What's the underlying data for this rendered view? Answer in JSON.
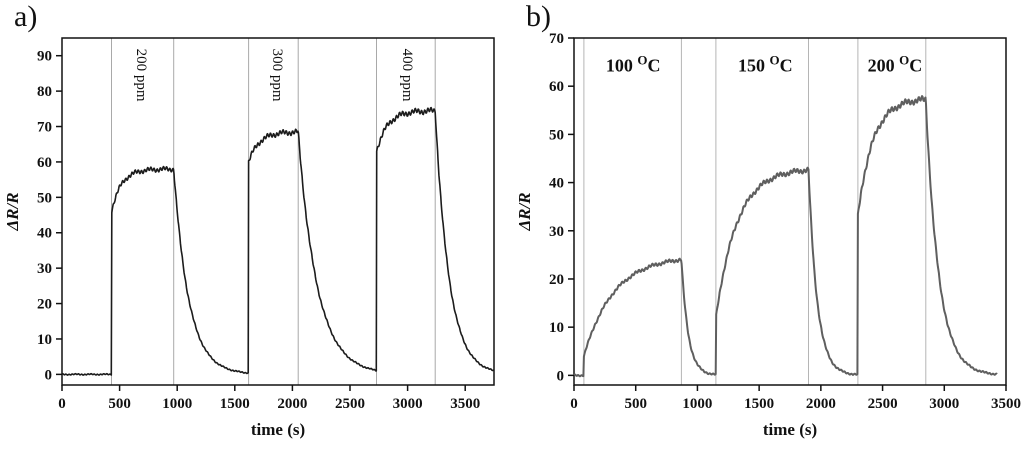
{
  "figure": {
    "background": "#ffffff",
    "panels": [
      {
        "label": "a)"
      },
      {
        "label": "b)"
      }
    ]
  },
  "chart_data": [
    {
      "type": "line",
      "panel": "a",
      "title": "",
      "xlabel": "time (s)",
      "ylabel": "ΔR/R",
      "xlim": [
        0,
        3750
      ],
      "ylim": [
        -3,
        95
      ],
      "x_end": 3750,
      "xticks": [
        0,
        500,
        1000,
        1500,
        2000,
        2500,
        3000,
        3500
      ],
      "yticks": [
        0,
        10,
        20,
        30,
        40,
        50,
        60,
        70,
        80,
        90
      ],
      "line_color": "#1c1c1c",
      "line_width": 1.6,
      "grid_color": "#a9a9a9",
      "guide_lines_x": [
        430,
        970,
        1620,
        2050,
        2730,
        3240
      ],
      "pulses": [
        {
          "label": "200 ppm",
          "t_on": 430,
          "t_off": 970,
          "jump": 46,
          "peak": 58,
          "rise_tau": 85,
          "decay_tau": 130
        },
        {
          "label": "300 ppm",
          "t_on": 1620,
          "t_off": 2050,
          "jump": 60,
          "peak": 68.5,
          "rise_tau": 90,
          "decay_tau": 165
        },
        {
          "label": "400 ppm",
          "t_on": 2730,
          "t_off": 3240,
          "jump": 63,
          "peak": 74.5,
          "rise_tau": 95,
          "decay_tau": 120
        }
      ],
      "annotations": [
        {
          "parts": [
            {
              "t": "200 ppm"
            }
          ],
          "x": 650,
          "y": 92,
          "rotate": 90,
          "bold": false
        },
        {
          "parts": [
            {
              "t": "300 ppm"
            }
          ],
          "x": 1830,
          "y": 92,
          "rotate": 90,
          "bold": false
        },
        {
          "parts": [
            {
              "t": "400 ppm"
            }
          ],
          "x": 2960,
          "y": 92,
          "rotate": 90,
          "bold": false
        }
      ]
    },
    {
      "type": "line",
      "panel": "b",
      "title": "",
      "xlabel": "time (s)",
      "ylabel": "ΔR/R",
      "xlim": [
        0,
        3500
      ],
      "ylim": [
        -2,
        70
      ],
      "x_end": 3430,
      "xticks": [
        0,
        500,
        1000,
        1500,
        2000,
        2500,
        3000,
        3500
      ],
      "yticks": [
        0,
        10,
        20,
        30,
        40,
        50,
        60,
        70
      ],
      "line_color": "#5f5f5f",
      "line_width": 2,
      "grid_color": "#b5b5b5",
      "guide_lines_x": [
        80,
        870,
        1150,
        1900,
        2300,
        2850
      ],
      "pulses": [
        {
          "label": "100 °C",
          "t_on": 80,
          "t_off": 870,
          "jump": 4,
          "peak": 24.8,
          "rise_tau": 240,
          "decay_tau": 55
        },
        {
          "label": "150 °C",
          "t_on": 1150,
          "t_off": 1900,
          "jump": 12,
          "peak": 43,
          "rise_tau": 170,
          "decay_tau": 70
        },
        {
          "label": "200 °C",
          "t_on": 2300,
          "t_off": 2850,
          "jump": 33,
          "peak": 57.5,
          "rise_tau": 120,
          "decay_tau": 105
        }
      ],
      "annotations": [
        {
          "parts": [
            {
              "t": "100 "
            },
            {
              "t": "O",
              "sup": true
            },
            {
              "t": "C"
            }
          ],
          "x": 480,
          "y": 63,
          "rotate": 0,
          "bold": true
        },
        {
          "parts": [
            {
              "t": "150 "
            },
            {
              "t": "O",
              "sup": true
            },
            {
              "t": "C"
            }
          ],
          "x": 1550,
          "y": 63,
          "rotate": 0,
          "bold": true
        },
        {
          "parts": [
            {
              "t": "200 "
            },
            {
              "t": "O",
              "sup": true
            },
            {
              "t": "C"
            }
          ],
          "x": 2600,
          "y": 63,
          "rotate": 0,
          "bold": true
        }
      ]
    }
  ]
}
